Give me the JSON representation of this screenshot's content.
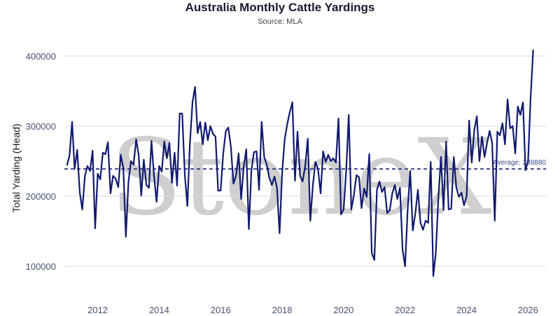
{
  "chart_data": {
    "type": "line",
    "title": "Australia Monthly Cattle Yardings",
    "subtitle": "Source: MLA",
    "ylabel": "Total Yarding (Head)",
    "xlabel": "",
    "watermark": "StoneX",
    "x_ticks": [
      "2012",
      "2014",
      "2016",
      "2018",
      "2020",
      "2022",
      "2024",
      "2026"
    ],
    "y_ticks": [
      "100000",
      "200000",
      "300000",
      "400000"
    ],
    "ylim": [
      70000,
      430000
    ],
    "xlim": [
      "2010-12",
      "2026-08"
    ],
    "grid": true,
    "average": {
      "value": 238880,
      "label": "Average: 238880"
    },
    "colors": {
      "line": "#111a6e",
      "average": "#3d4a8a",
      "grid": "#d9d9d9"
    },
    "series": [
      {
        "values": [
          [
            "2011-01",
            244000
          ],
          [
            "2011-02",
            258000
          ],
          [
            "2011-03",
            306000
          ],
          [
            "2011-04",
            239000
          ],
          [
            "2011-05",
            266000
          ],
          [
            "2011-06",
            205000
          ],
          [
            "2011-07",
            181000
          ],
          [
            "2011-08",
            229000
          ],
          [
            "2011-09",
            243000
          ],
          [
            "2011-10",
            236000
          ],
          [
            "2011-11",
            265000
          ],
          [
            "2011-12",
            154000
          ],
          [
            "2012-01",
            232000
          ],
          [
            "2012-02",
            224000
          ],
          [
            "2012-03",
            262000
          ],
          [
            "2012-04",
            260000
          ],
          [
            "2012-05",
            277000
          ],
          [
            "2012-06",
            204000
          ],
          [
            "2012-07",
            229000
          ],
          [
            "2012-08",
            225000
          ],
          [
            "2012-09",
            213000
          ],
          [
            "2012-10",
            259000
          ],
          [
            "2012-11",
            240000
          ],
          [
            "2012-12",
            142000
          ],
          [
            "2013-01",
            220000
          ],
          [
            "2013-02",
            250000
          ],
          [
            "2013-03",
            245000
          ],
          [
            "2013-04",
            281000
          ],
          [
            "2013-05",
            259000
          ],
          [
            "2013-06",
            201000
          ],
          [
            "2013-07",
            252000
          ],
          [
            "2013-08",
            216000
          ],
          [
            "2013-09",
            212000
          ],
          [
            "2013-10",
            279000
          ],
          [
            "2013-11",
            228000
          ],
          [
            "2013-12",
            192000
          ],
          [
            "2014-01",
            243000
          ],
          [
            "2014-02",
            235000
          ],
          [
            "2014-03",
            278000
          ],
          [
            "2014-04",
            254000
          ],
          [
            "2014-05",
            276000
          ],
          [
            "2014-06",
            219000
          ],
          [
            "2014-07",
            262000
          ],
          [
            "2014-08",
            215000
          ],
          [
            "2014-09",
            318000
          ],
          [
            "2014-10",
            318000
          ],
          [
            "2014-11",
            231000
          ],
          [
            "2014-12",
            186000
          ],
          [
            "2015-01",
            275000
          ],
          [
            "2015-02",
            334000
          ],
          [
            "2015-03",
            356000
          ],
          [
            "2015-04",
            290000
          ],
          [
            "2015-05",
            306000
          ],
          [
            "2015-06",
            274000
          ],
          [
            "2015-07",
            305000
          ],
          [
            "2015-08",
            280000
          ],
          [
            "2015-09",
            300000
          ],
          [
            "2015-10",
            289000
          ],
          [
            "2015-11",
            285000
          ],
          [
            "2015-12",
            208000
          ],
          [
            "2016-01",
            208000
          ],
          [
            "2016-02",
            261000
          ],
          [
            "2016-03",
            293000
          ],
          [
            "2016-04",
            298000
          ],
          [
            "2016-05",
            270000
          ],
          [
            "2016-06",
            218000
          ],
          [
            "2016-07",
            229000
          ],
          [
            "2016-08",
            261000
          ],
          [
            "2016-09",
            196000
          ],
          [
            "2016-10",
            242000
          ],
          [
            "2016-11",
            267000
          ],
          [
            "2016-12",
            153000
          ],
          [
            "2017-01",
            236000
          ],
          [
            "2017-02",
            263000
          ],
          [
            "2017-03",
            264000
          ],
          [
            "2017-04",
            209000
          ],
          [
            "2017-05",
            306000
          ],
          [
            "2017-06",
            256000
          ],
          [
            "2017-07",
            245000
          ],
          [
            "2017-08",
            226000
          ],
          [
            "2017-09",
            216000
          ],
          [
            "2017-10",
            228000
          ],
          [
            "2017-11",
            212000
          ],
          [
            "2017-12",
            147000
          ],
          [
            "2018-01",
            234000
          ],
          [
            "2018-02",
            281000
          ],
          [
            "2018-03",
            303000
          ],
          [
            "2018-04",
            320000
          ],
          [
            "2018-05",
            334000
          ],
          [
            "2018-06",
            222000
          ],
          [
            "2018-07",
            292000
          ],
          [
            "2018-08",
            229000
          ],
          [
            "2018-09",
            221000
          ],
          [
            "2018-10",
            243000
          ],
          [
            "2018-11",
            282000
          ],
          [
            "2018-12",
            165000
          ],
          [
            "2019-01",
            216000
          ],
          [
            "2019-02",
            249000
          ],
          [
            "2019-03",
            239000
          ],
          [
            "2019-04",
            204000
          ],
          [
            "2019-05",
            264000
          ],
          [
            "2019-06",
            249000
          ],
          [
            "2019-07",
            259000
          ],
          [
            "2019-08",
            250000
          ],
          [
            "2019-09",
            254000
          ],
          [
            "2019-10",
            248000
          ],
          [
            "2019-11",
            311000
          ],
          [
            "2019-12",
            174000
          ],
          [
            "2020-01",
            181000
          ],
          [
            "2020-02",
            237000
          ],
          [
            "2020-03",
            316000
          ],
          [
            "2020-04",
            181000
          ],
          [
            "2020-05",
            201000
          ],
          [
            "2020-06",
            230000
          ],
          [
            "2020-07",
            227000
          ],
          [
            "2020-08",
            183000
          ],
          [
            "2020-09",
            211000
          ],
          [
            "2020-10",
            199000
          ],
          [
            "2020-11",
            260000
          ],
          [
            "2020-12",
            119000
          ],
          [
            "2021-01",
            109000
          ],
          [
            "2021-02",
            209000
          ],
          [
            "2021-03",
            221000
          ],
          [
            "2021-04",
            206000
          ],
          [
            "2021-05",
            213000
          ],
          [
            "2021-06",
            176000
          ],
          [
            "2021-07",
            180000
          ],
          [
            "2021-08",
            204000
          ],
          [
            "2021-09",
            216000
          ],
          [
            "2021-10",
            196000
          ],
          [
            "2021-11",
            212000
          ],
          [
            "2021-12",
            124000
          ],
          [
            "2022-01",
            100000
          ],
          [
            "2022-02",
            181000
          ],
          [
            "2022-03",
            236000
          ],
          [
            "2022-04",
            151000
          ],
          [
            "2022-05",
            176000
          ],
          [
            "2022-06",
            209000
          ],
          [
            "2022-07",
            162000
          ],
          [
            "2022-08",
            152000
          ],
          [
            "2022-09",
            165000
          ],
          [
            "2022-10",
            162000
          ],
          [
            "2022-11",
            249000
          ],
          [
            "2022-12",
            86000
          ],
          [
            "2023-01",
            119000
          ],
          [
            "2023-02",
            199000
          ],
          [
            "2023-03",
            256000
          ],
          [
            "2023-04",
            180000
          ],
          [
            "2023-05",
            278000
          ],
          [
            "2023-06",
            181000
          ],
          [
            "2023-07",
            182000
          ],
          [
            "2023-08",
            256000
          ],
          [
            "2023-09",
            212000
          ],
          [
            "2023-10",
            199000
          ],
          [
            "2023-11",
            205000
          ],
          [
            "2023-12",
            187000
          ],
          [
            "2024-01",
            200000
          ],
          [
            "2024-02",
            308000
          ],
          [
            "2024-03",
            248000
          ],
          [
            "2024-04",
            294000
          ],
          [
            "2024-05",
            314000
          ],
          [
            "2024-06",
            250000
          ],
          [
            "2024-07",
            285000
          ],
          [
            "2024-08",
            256000
          ],
          [
            "2024-09",
            276000
          ],
          [
            "2024-10",
            293000
          ],
          [
            "2024-11",
            276000
          ],
          [
            "2024-12",
            165000
          ],
          [
            "2025-01",
            292000
          ],
          [
            "2025-02",
            287000
          ],
          [
            "2025-03",
            304000
          ],
          [
            "2025-04",
            274000
          ],
          [
            "2025-05",
            338000
          ],
          [
            "2025-06",
            297000
          ],
          [
            "2025-07",
            300000
          ],
          [
            "2025-08",
            261000
          ],
          [
            "2025-09",
            328000
          ],
          [
            "2025-10",
            316000
          ],
          [
            "2025-11",
            334000
          ],
          [
            "2025-12",
            237000
          ],
          [
            "2026-01",
            250000
          ],
          [
            "2026-02",
            340000
          ],
          [
            "2026-03",
            409000
          ]
        ]
      }
    ]
  }
}
